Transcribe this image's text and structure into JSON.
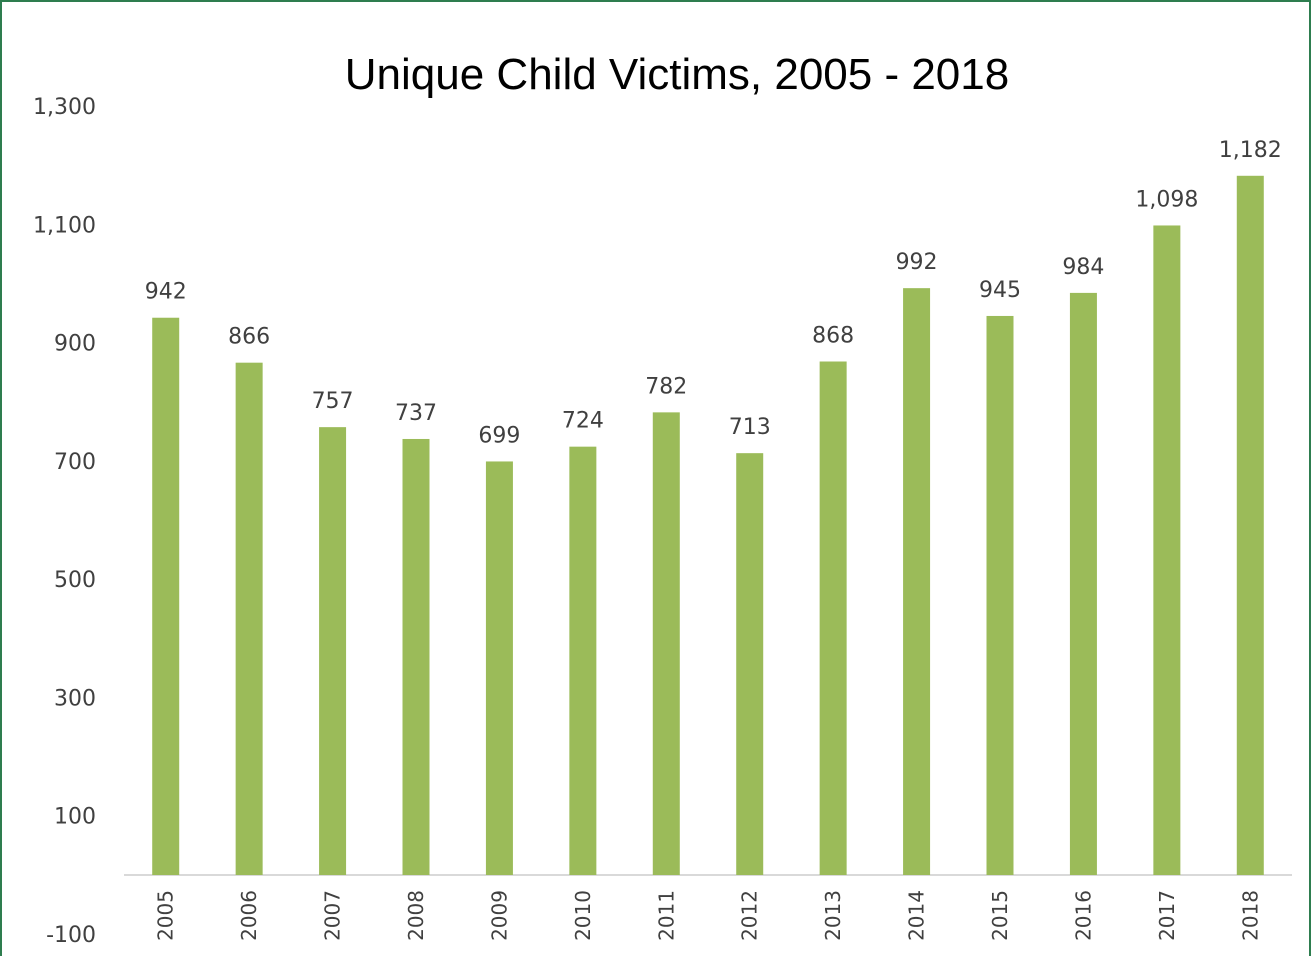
{
  "chart_data": {
    "type": "bar",
    "title": "Unique Child Victims, 2005 - 2018",
    "xlabel": "",
    "ylabel": "",
    "categories": [
      "2005",
      "2006",
      "2007",
      "2008",
      "2009",
      "2010",
      "2011",
      "2012",
      "2013",
      "2014",
      "2015",
      "2016",
      "2017",
      "2018"
    ],
    "values": [
      942,
      866,
      757,
      737,
      699,
      724,
      782,
      713,
      868,
      992,
      945,
      984,
      1098,
      1182
    ],
    "value_labels": [
      "942",
      "866",
      "757",
      "737",
      "699",
      "724",
      "782",
      "713",
      "868",
      "992",
      "945",
      "984",
      "1,098",
      "1,182"
    ],
    "yticks": [
      -100,
      100,
      300,
      500,
      700,
      900,
      1100,
      1300
    ],
    "ytick_labels": [
      "-100",
      "100",
      "300",
      "500",
      "700",
      "900",
      "1,100",
      "1,300"
    ],
    "ylim": [
      -100,
      1300
    ],
    "grid": false,
    "legend": "none",
    "bar_color": "#9bbb59",
    "axis_color": "#d9d9d9",
    "frame_color": "#2e7d4f"
  }
}
